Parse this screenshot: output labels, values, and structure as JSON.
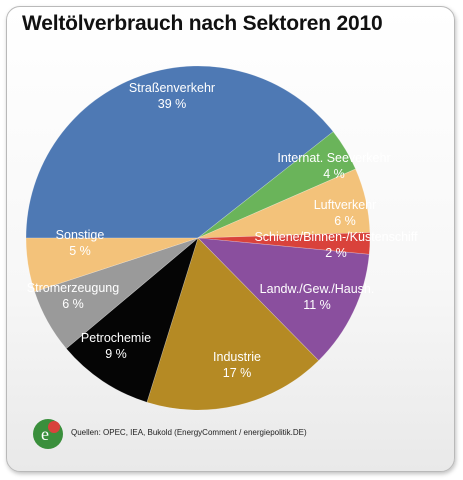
{
  "chart_data": {
    "type": "pie",
    "title": "Weltölverbrauch nach Sektoren 2010",
    "slices": [
      {
        "label": "Straßenverkehr",
        "value_label": "39 %",
        "value": 39,
        "color": "#4e79b4"
      },
      {
        "label": "Internat. Seeverkehr",
        "value_label": "4 %",
        "value": 4,
        "color": "#6ab45a"
      },
      {
        "label": "Luftverkehr",
        "value_label": "6 %",
        "value": 6,
        "color": "#f3c27a"
      },
      {
        "label": "Schiene/Binnen-/Küstenschiff",
        "value_label": "2 %",
        "value": 2,
        "color": "#d9423b"
      },
      {
        "label": "Landw./Gew./Haush.",
        "value_label": "11 %",
        "value": 11,
        "color": "#8a4f9e"
      },
      {
        "label": "Industrie",
        "value_label": "17 %",
        "value": 17,
        "color": "#b58a24"
      },
      {
        "label": "Petrochemie",
        "value_label": "9 %",
        "value": 9,
        "color": "#050505"
      },
      {
        "label": "Stromerzeugung",
        "value_label": "6 %",
        "value": 6,
        "color": "#9a9a9a"
      },
      {
        "label": "Sonstige",
        "value_label": "5 %",
        "value": 5,
        "color": "#f3c27a"
      }
    ]
  },
  "footer": {
    "source": "Quellen: OPEC, IEA, Bukold (EnergyComment / energiepolitik.DE)",
    "logo_text": "e"
  }
}
